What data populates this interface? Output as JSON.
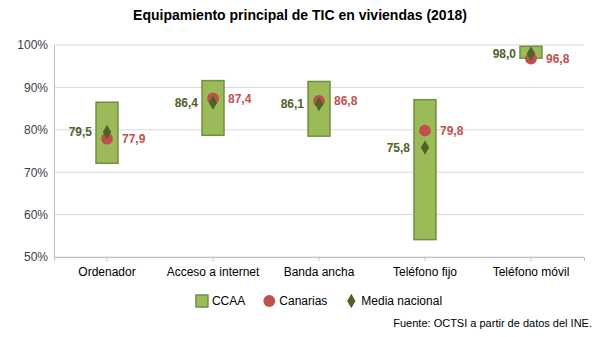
{
  "chart_data": {
    "type": "range",
    "title": "Equipamiento principal de TIC en viviendas (2018)",
    "source": "Fuente: OCTSI a partir de datos del INE.",
    "categories": [
      "Ordenador",
      "Acceso a internet",
      "Banda ancha",
      "Teléfono fijo",
      "Teléfono móvil"
    ],
    "ylim": [
      50,
      100
    ],
    "yticks": [
      {
        "value": 50,
        "label": "50%"
      },
      {
        "value": 60,
        "label": "60%"
      },
      {
        "value": 70,
        "label": "70%"
      },
      {
        "value": 80,
        "label": "80%"
      },
      {
        "value": 90,
        "label": "90%"
      },
      {
        "value": 100,
        "label": "100%"
      }
    ],
    "grid": true,
    "legend": "bottom",
    "data_labels": true,
    "series": [
      {
        "name": "CCAA",
        "type": "range",
        "color": "#9bbb59",
        "low": [
          72.1,
          78.7,
          78.5,
          54.1,
          96.9
        ],
        "high": [
          86.5,
          91.6,
          91.4,
          87.1,
          99.7
        ]
      },
      {
        "name": "Canarias",
        "type": "scatter",
        "marker": "circle",
        "color": "#c0504d",
        "values": [
          77.9,
          87.4,
          86.8,
          79.8,
          96.8
        ],
        "value_labels": [
          "77,9",
          "87,4",
          "86,8",
          "79,8",
          "96,8"
        ]
      },
      {
        "name": "Media nacional",
        "type": "scatter",
        "marker": "diamond",
        "color": "#4f6228",
        "values": [
          79.5,
          86.4,
          86.1,
          75.8,
          98.0
        ],
        "value_labels": [
          "79,5",
          "86,4",
          "86,1",
          "75,8",
          "98,0"
        ]
      }
    ]
  }
}
